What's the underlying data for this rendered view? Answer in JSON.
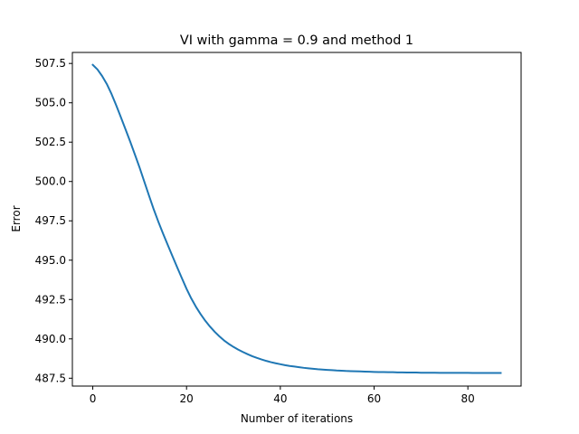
{
  "chart_data": {
    "type": "line",
    "title": "VI with gamma = 0.9 and method 1",
    "xlabel": "Number of iterations",
    "ylabel": "Error",
    "xlim": [
      -4.35,
      91.35
    ],
    "ylim": [
      487.0,
      508.2
    ],
    "xticks": [
      0,
      20,
      40,
      60,
      80
    ],
    "yticks": [
      487.5,
      490.0,
      492.5,
      495.0,
      497.5,
      500.0,
      502.5,
      505.0,
      507.5
    ],
    "xtick_labels": [
      "0",
      "20",
      "40",
      "60",
      "80"
    ],
    "ytick_labels": [
      "487.5",
      "490.0",
      "492.5",
      "495.0",
      "497.5",
      "500.0",
      "502.5",
      "505.0",
      "507.5"
    ],
    "grid": false,
    "series": [
      {
        "color": "#1f77b4",
        "x": [
          0,
          1,
          2,
          3,
          4,
          5,
          6,
          7,
          8,
          9,
          10,
          11,
          12,
          13,
          14,
          15,
          16,
          17,
          18,
          19,
          20,
          21,
          22,
          23,
          24,
          25,
          26,
          27,
          28,
          29,
          30,
          31,
          32,
          33,
          34,
          35,
          36,
          37,
          38,
          39,
          40,
          41,
          42,
          43,
          44,
          45,
          46,
          47,
          48,
          49,
          50,
          51,
          52,
          53,
          54,
          55,
          56,
          57,
          58,
          59,
          60,
          61,
          62,
          63,
          64,
          65,
          66,
          67,
          68,
          69,
          70,
          71,
          72,
          73,
          74,
          75,
          76,
          77,
          78,
          79,
          80,
          81,
          82,
          83,
          84,
          85,
          86,
          87
        ],
        "y": [
          507.41,
          507.12,
          506.7,
          506.19,
          505.56,
          504.84,
          504.08,
          503.3,
          502.52,
          501.7,
          500.87,
          499.98,
          499.1,
          498.23,
          497.43,
          496.68,
          495.96,
          495.25,
          494.55,
          493.86,
          493.18,
          492.57,
          492.04,
          491.57,
          491.15,
          490.78,
          490.45,
          490.16,
          489.9,
          489.68,
          489.49,
          489.32,
          489.17,
          489.03,
          488.9,
          488.79,
          488.69,
          488.6,
          488.52,
          488.45,
          488.39,
          488.33,
          488.28,
          488.24,
          488.2,
          488.16,
          488.13,
          488.1,
          488.07,
          488.05,
          488.03,
          488.01,
          487.99,
          487.98,
          487.96,
          487.95,
          487.94,
          487.93,
          487.92,
          487.91,
          487.9,
          487.89,
          487.89,
          487.88,
          487.88,
          487.87,
          487.87,
          487.86,
          487.86,
          487.86,
          487.85,
          487.85,
          487.85,
          487.85,
          487.84,
          487.84,
          487.84,
          487.84,
          487.84,
          487.84,
          487.84,
          487.83,
          487.83,
          487.83,
          487.83,
          487.83,
          487.83,
          487.83
        ]
      }
    ]
  }
}
